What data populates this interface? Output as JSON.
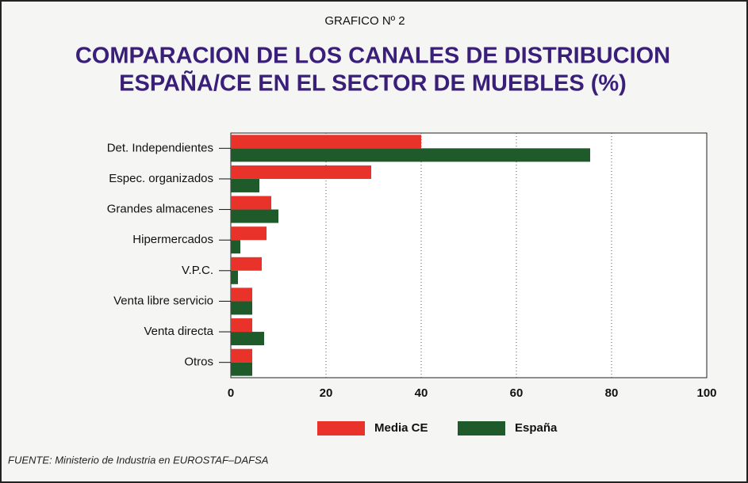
{
  "chart_data": {
    "type": "hbar",
    "subtitle": "GRAFICO Nº 2",
    "title": [
      "COMPARACION DE LOS CANALES DE DISTRIBUCION",
      "ESPAÑA/CE EN EL SECTOR DE MUEBLES (%)"
    ],
    "categories": [
      "Det. Independientes",
      "Espec. organizados",
      "Grandes almacenes",
      "Hipermercados",
      "V.P.C.",
      "Venta libre servicio",
      "Venta directa",
      "Otros"
    ],
    "series": [
      {
        "name": "Media CE",
        "color": "#e8322a",
        "values": [
          40,
          29.5,
          8.5,
          7.5,
          6.5,
          4.5,
          4.5,
          4.5
        ]
      },
      {
        "name": "España",
        "color": "#1f5a2a",
        "values": [
          75.5,
          6,
          10,
          2,
          1.5,
          4.5,
          7,
          4.5
        ]
      }
    ],
    "xlim": [
      0,
      100
    ],
    "xticks": [
      0,
      20,
      40,
      60,
      80,
      100
    ],
    "grid": true,
    "source": "FUENTE: Ministerio de Industria en EUROSTAF–DAFSA"
  }
}
